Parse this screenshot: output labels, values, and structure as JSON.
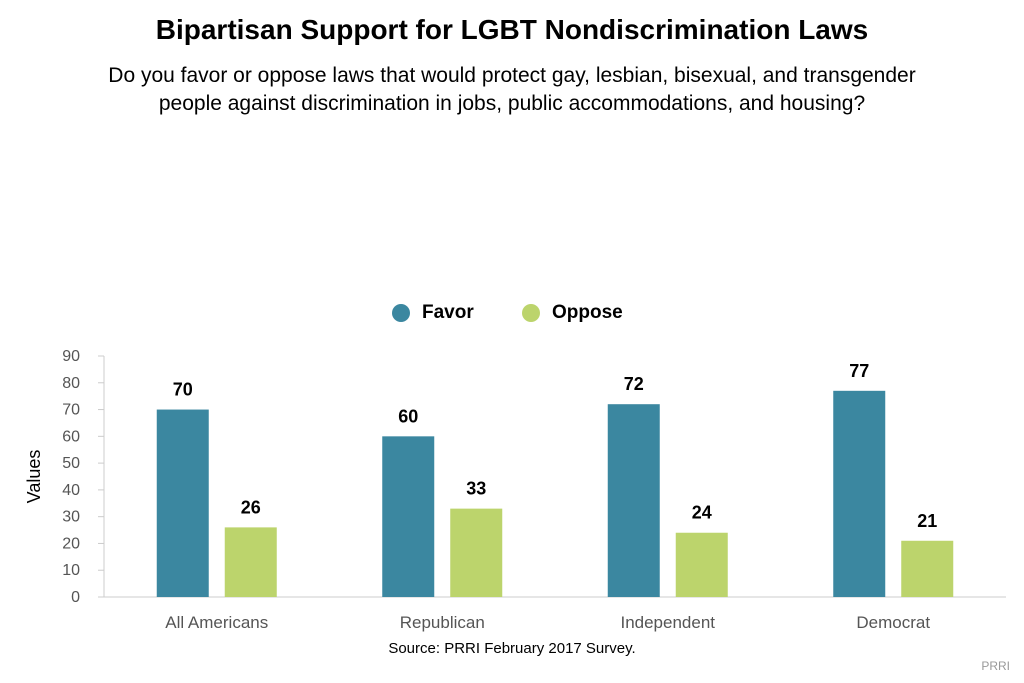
{
  "chart_data": {
    "type": "bar",
    "title": "Bipartisan Support for LGBT Nondiscrimination Laws",
    "subtitle": "Do you favor or oppose laws that would protect gay, lesbian, bisexual, and transgender people against discrimination in jobs, public accommodations, and housing?",
    "categories": [
      "All Americans",
      "Republican",
      "Independent",
      "Democrat"
    ],
    "series": [
      {
        "name": "Favor",
        "values": [
          70,
          60,
          72,
          77
        ],
        "color": "#3b87a0"
      },
      {
        "name": "Oppose",
        "values": [
          26,
          33,
          24,
          21
        ],
        "color": "#bcd46c"
      }
    ],
    "xlabel": "",
    "ylabel": "Values",
    "ylim": [
      0,
      90
    ],
    "yticks": [
      0,
      10,
      20,
      30,
      40,
      50,
      60,
      70,
      80,
      90
    ],
    "legend_position": "top-center",
    "grid": false,
    "source": "Source: PRRI February 2017 Survey.",
    "credit": "PRRI"
  }
}
